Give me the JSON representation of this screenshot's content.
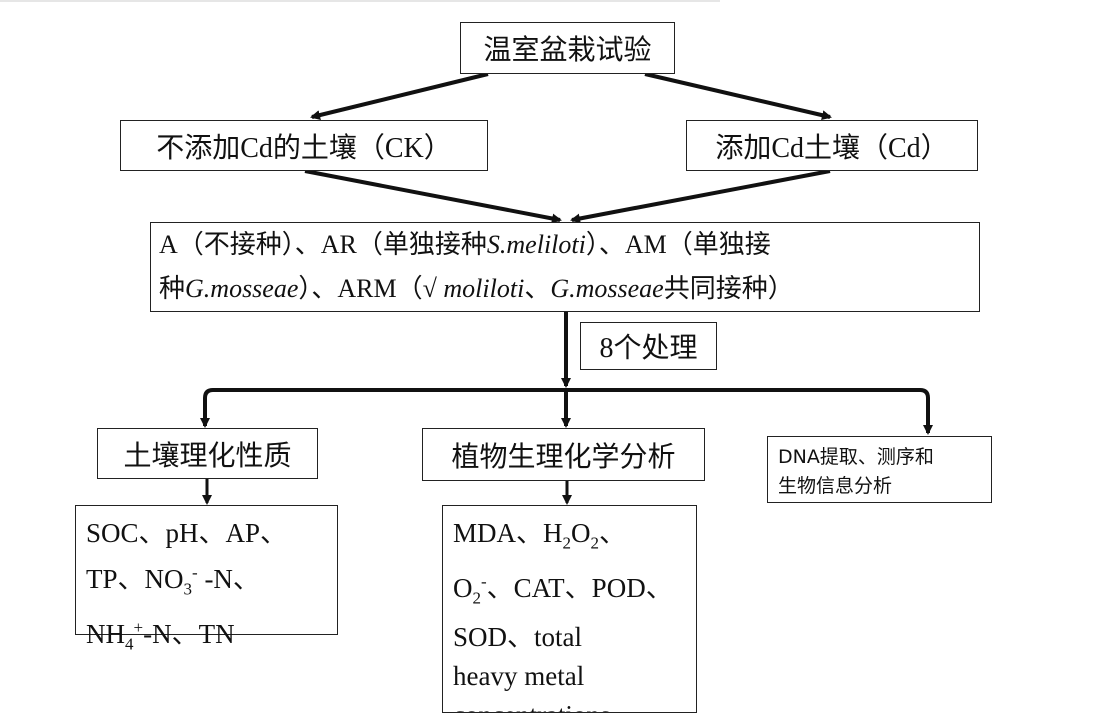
{
  "top": "温室盆栽试验",
  "ck": "不添加Cd的土壤（CK）",
  "cd": "添加Cd土壤（Cd）",
  "treatments": {
    "line1": [
      {
        "t": "A（不接种）、AR（单独接种"
      },
      {
        "t": "S.meliloti",
        "i": true
      },
      {
        "t": "）、AM（单独接"
      }
    ],
    "line2": [
      {
        "t": "种"
      },
      {
        "t": "G.mosseae",
        "i": true
      },
      {
        "t": "）、ARM（"
      },
      {
        "t": "√ moliloti",
        "i": true
      },
      {
        "t": "、"
      },
      {
        "t": "G.mosseae",
        "i": true
      },
      {
        "t": "共同接种）"
      }
    ]
  },
  "n_treatments": "8个处理",
  "branches": {
    "soil": "土壤理化性质",
    "plant": "植物生理化学分析",
    "dna_line1": "DNA提取、测序和",
    "dna_line2": "生物信息分析"
  },
  "soil_list": {
    "l1": "SOC、pH、AP、",
    "l2a": "TP、NO",
    "l2sub": "3",
    "l2sup": "-",
    "l2b": " -N、",
    "l3a": "NH",
    "l3sub": "4",
    "l3sup": "+",
    "l3b": "-N、TN"
  },
  "plant_list": {
    "l1a": "MDA、H",
    "l1sub1": "2",
    "l1b": "O",
    "l1sub2": "2",
    "l1c": "、",
    "l2a": "O",
    "l2sub": "2",
    "l2sup": "-",
    "l2b": "、CAT、POD、",
    "l3": "SOD、total",
    "l4": "heavy metal",
    "l5": "concentrations"
  }
}
